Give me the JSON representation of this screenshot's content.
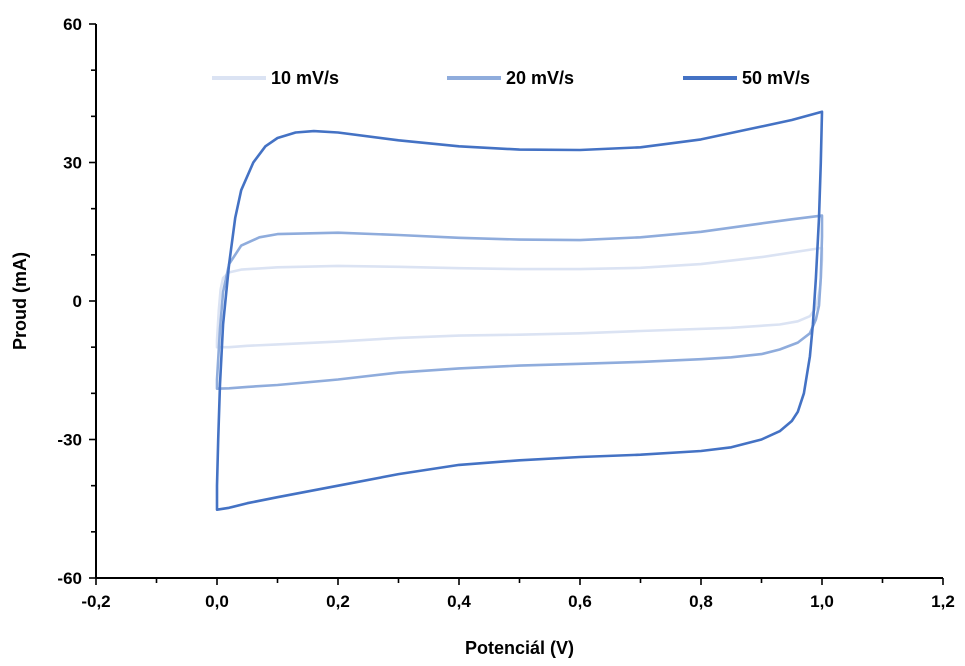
{
  "chart_data": {
    "type": "line",
    "title": "",
    "xlabel": "Potenciál (V)",
    "ylabel": "Proud (mA)",
    "xlim": [
      -0.2,
      1.2
    ],
    "ylim": [
      -60,
      60
    ],
    "xticks": [
      -0.2,
      0.0,
      0.2,
      0.4,
      0.6,
      0.8,
      1.0,
      1.2
    ],
    "xtick_labels": [
      "-0,2",
      "0,0",
      "0,2",
      "0,4",
      "0,6",
      "0,8",
      "1,0",
      "1,2"
    ],
    "yticks": [
      -60,
      -30,
      0,
      30,
      60
    ],
    "ytick_labels": [
      "-60",
      "-30",
      "0",
      "30",
      "60"
    ],
    "grid": false,
    "legend_position": "top",
    "series": [
      {
        "name": "10 mV/s",
        "color": "#dbe3f3",
        "x": [
          0.0,
          0.003,
          0.006,
          0.01,
          0.02,
          0.04,
          0.1,
          0.2,
          0.3,
          0.4,
          0.5,
          0.6,
          0.7,
          0.8,
          0.9,
          1.0,
          1.0,
          0.997,
          0.99,
          0.98,
          0.96,
          0.93,
          0.85,
          0.7,
          0.6,
          0.5,
          0.4,
          0.3,
          0.2,
          0.1,
          0.05,
          0.02,
          0.005,
          0.0,
          0.0
        ],
        "y": [
          -8.5,
          -2,
          2.5,
          5.0,
          6.2,
          6.8,
          7.3,
          7.6,
          7.4,
          7.1,
          6.9,
          6.9,
          7.2,
          8.0,
          9.5,
          11.5,
          9.0,
          3.0,
          -1.5,
          -3.3,
          -4.4,
          -5.1,
          -5.8,
          -6.5,
          -7.0,
          -7.3,
          -7.5,
          -8.0,
          -8.8,
          -9.4,
          -9.7,
          -10.0,
          -10.0,
          -10.0,
          -8.5
        ]
      },
      {
        "name": "20 mV/s",
        "color": "#8facdc",
        "x": [
          0.0,
          0.005,
          0.01,
          0.02,
          0.04,
          0.07,
          0.1,
          0.2,
          0.3,
          0.4,
          0.5,
          0.6,
          0.7,
          0.8,
          0.9,
          0.95,
          1.0,
          1.0,
          0.998,
          0.995,
          0.99,
          0.98,
          0.96,
          0.93,
          0.9,
          0.85,
          0.8,
          0.7,
          0.6,
          0.5,
          0.4,
          0.3,
          0.2,
          0.1,
          0.05,
          0.02,
          0.0,
          0.0
        ],
        "y": [
          -17,
          -6,
          2,
          8,
          12,
          13.8,
          14.5,
          14.8,
          14.3,
          13.7,
          13.3,
          13.2,
          13.8,
          15.0,
          16.8,
          17.7,
          18.5,
          14.0,
          5.0,
          -1.0,
          -4.0,
          -7.0,
          -9.0,
          -10.5,
          -11.5,
          -12.2,
          -12.6,
          -13.2,
          -13.6,
          -14.0,
          -14.6,
          -15.5,
          -17.0,
          -18.2,
          -18.6,
          -18.9,
          -19.0,
          -17.0
        ]
      },
      {
        "name": "50 mV/s",
        "color": "#4472c4",
        "x": [
          0.0,
          0.0,
          0.002,
          0.005,
          0.01,
          0.02,
          0.03,
          0.04,
          0.06,
          0.08,
          0.1,
          0.13,
          0.16,
          0.2,
          0.3,
          0.4,
          0.5,
          0.6,
          0.7,
          0.8,
          0.9,
          0.95,
          1.0,
          0.998,
          0.995,
          0.99,
          0.985,
          0.98,
          0.97,
          0.96,
          0.95,
          0.93,
          0.9,
          0.85,
          0.8,
          0.7,
          0.6,
          0.5,
          0.4,
          0.3,
          0.2,
          0.1,
          0.05,
          0.02,
          0.0,
          0.0
        ],
        "y": [
          -43,
          -40,
          -30,
          -18,
          -5,
          8,
          18,
          24,
          30,
          33.5,
          35.3,
          36.5,
          36.8,
          36.5,
          34.8,
          33.5,
          32.8,
          32.7,
          33.3,
          35.0,
          37.8,
          39.2,
          41.0,
          30,
          18,
          5,
          -5,
          -12,
          -20,
          -24,
          -26.0,
          -28.2,
          -30.0,
          -31.7,
          -32.5,
          -33.3,
          -33.8,
          -34.5,
          -35.5,
          -37.5,
          -40.0,
          -42.5,
          -43.8,
          -44.8,
          -45.2,
          -43
        ]
      }
    ]
  }
}
